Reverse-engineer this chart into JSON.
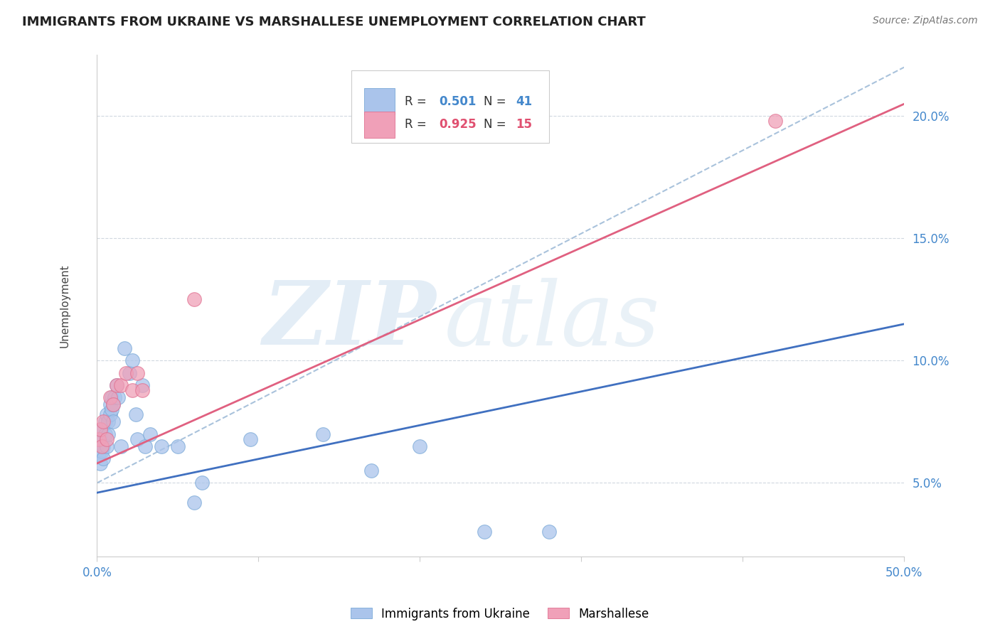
{
  "title": "IMMIGRANTS FROM UKRAINE VS MARSHALLESE UNEMPLOYMENT CORRELATION CHART",
  "source": "Source: ZipAtlas.com",
  "ylabel": "Unemployment",
  "y_tick_labels": [
    "5.0%",
    "10.0%",
    "15.0%",
    "20.0%"
  ],
  "y_tick_values": [
    0.05,
    0.1,
    0.15,
    0.2
  ],
  "x_tick_positions": [
    0.0,
    0.1,
    0.2,
    0.3,
    0.4,
    0.5
  ],
  "xlim": [
    0.0,
    0.5
  ],
  "ylim": [
    0.02,
    0.225
  ],
  "legend_r1": "R = 0.501",
  "legend_n1": "N = 41",
  "legend_r2": "R = 0.925",
  "legend_n2": "N = 15",
  "ukraine_color": "#aac4eb",
  "marshallese_color": "#f0a0b8",
  "ukraine_edge_color": "#7baad8",
  "marshallese_edge_color": "#e07090",
  "ukraine_line_color": "#4070c0",
  "marshallese_line_color": "#e06080",
  "diagonal_color": "#a0bcd8",
  "background_color": "#ffffff",
  "grid_color": "#d0d8e0",
  "ukraine_x": [
    0.001,
    0.002,
    0.002,
    0.003,
    0.003,
    0.004,
    0.004,
    0.005,
    0.005,
    0.006,
    0.006,
    0.007,
    0.007,
    0.008,
    0.008,
    0.009,
    0.009,
    0.01,
    0.01,
    0.011,
    0.012,
    0.013,
    0.015,
    0.017,
    0.02,
    0.022,
    0.024,
    0.025,
    0.028,
    0.03,
    0.033,
    0.04,
    0.05,
    0.06,
    0.065,
    0.095,
    0.14,
    0.17,
    0.2,
    0.24,
    0.28
  ],
  "ukraine_y": [
    0.062,
    0.058,
    0.068,
    0.063,
    0.072,
    0.065,
    0.06,
    0.07,
    0.075,
    0.065,
    0.078,
    0.07,
    0.075,
    0.078,
    0.082,
    0.08,
    0.085,
    0.075,
    0.082,
    0.085,
    0.09,
    0.085,
    0.065,
    0.105,
    0.095,
    0.1,
    0.078,
    0.068,
    0.09,
    0.065,
    0.07,
    0.065,
    0.065,
    0.042,
    0.05,
    0.068,
    0.07,
    0.055,
    0.065,
    0.03,
    0.03
  ],
  "marshallese_x": [
    0.001,
    0.002,
    0.003,
    0.004,
    0.006,
    0.008,
    0.01,
    0.012,
    0.015,
    0.018,
    0.022,
    0.025,
    0.028,
    0.06,
    0.42
  ],
  "marshallese_y": [
    0.068,
    0.072,
    0.065,
    0.075,
    0.068,
    0.085,
    0.082,
    0.09,
    0.09,
    0.095,
    0.088,
    0.095,
    0.088,
    0.125,
    0.198
  ],
  "ukraine_trend": [
    0.046,
    0.115
  ],
  "marshallese_trend": [
    0.058,
    0.205
  ],
  "diagonal_trend": [
    0.05,
    0.22
  ],
  "watermark_zip": "ZIP",
  "watermark_atlas": "atlas"
}
